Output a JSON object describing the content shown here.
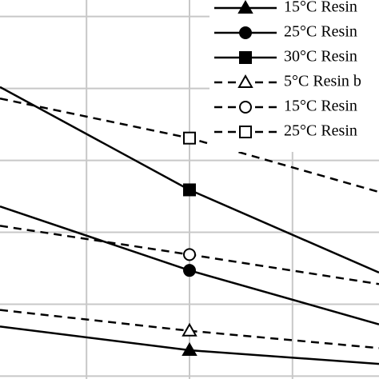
{
  "chart_data": {
    "type": "line",
    "x": [
      0.16,
      2,
      3.84
    ],
    "xlim": [
      0.16,
      3.84
    ],
    "xticks": [
      1,
      2,
      3
    ],
    "ylim": [
      -0.04,
      5.23
    ],
    "yticks": [
      0,
      1,
      2,
      3,
      4,
      5
    ],
    "grid": true,
    "legend": "top-right",
    "series": [
      {
        "name": "15°C Resin",
        "color": "#000000",
        "dash": false,
        "marker": "triangle",
        "values": [
          0.69,
          0.36,
          0.17
        ]
      },
      {
        "name": "25°C Resin",
        "color": "#000000",
        "dash": false,
        "marker": "circle",
        "values": [
          2.36,
          1.47,
          0.72
        ]
      },
      {
        "name": "30°C Resin",
        "color": "#000000",
        "dash": false,
        "marker": "square",
        "values": [
          4.02,
          2.59,
          1.44
        ]
      },
      {
        "name": "5°C Resin b",
        "color": "#000000",
        "dash": true,
        "marker": "triangle",
        "values": [
          0.92,
          0.63,
          0.39
        ]
      },
      {
        "name": "15°C Resin",
        "color": "#000000",
        "dash": true,
        "marker": "circle",
        "values": [
          2.09,
          1.69,
          1.28
        ]
      },
      {
        "name": "25°C Resin",
        "color": "#000000",
        "dash": true,
        "marker": "square",
        "values": [
          3.86,
          3.31,
          2.56
        ]
      }
    ]
  }
}
